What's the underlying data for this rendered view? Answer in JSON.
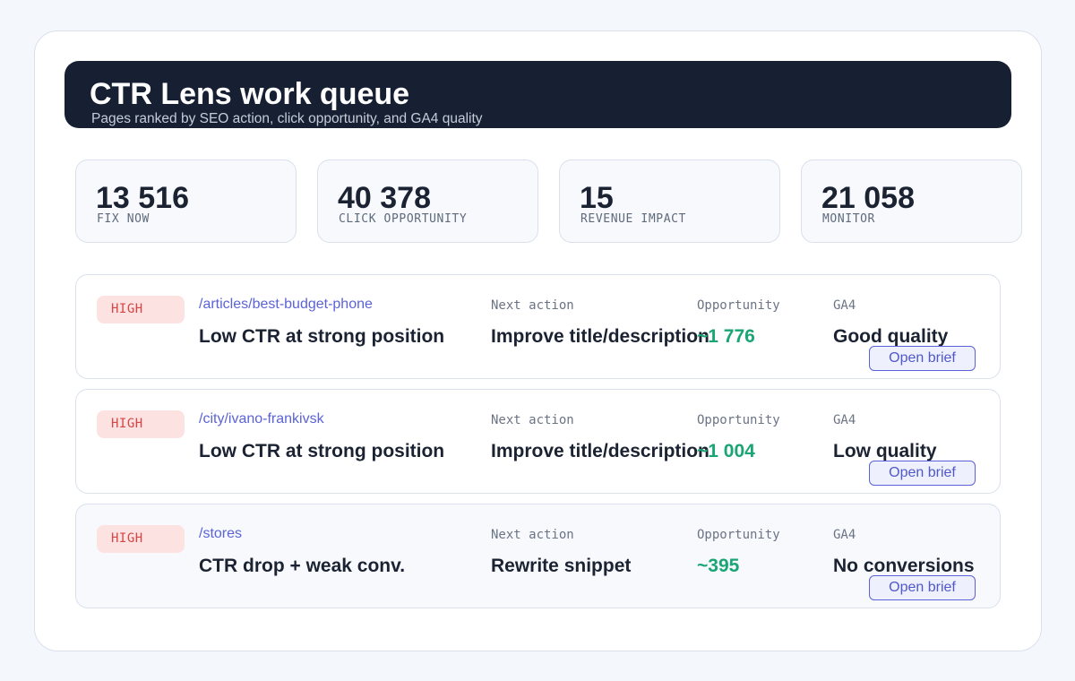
{
  "header": {
    "title": "CTR Lens work queue",
    "subtitle": "Pages ranked by SEO action, click opportunity, and GA4 quality"
  },
  "stats": [
    {
      "value": "13 516",
      "label": "FIX NOW"
    },
    {
      "value": "40 378",
      "label": "CLICK OPPORTUNITY"
    },
    {
      "value": "15",
      "label": "REVENUE IMPACT"
    },
    {
      "value": "21 058",
      "label": "MONITOR"
    }
  ],
  "columns": {
    "next_action": "Next action",
    "opportunity": "Opportunity",
    "ga4": "GA4"
  },
  "rows": [
    {
      "priority": "HIGH",
      "path": "/articles/best-budget-phone",
      "issue": "Low CTR at strong position",
      "next_action": "Improve title/description",
      "opportunity": "~1 776",
      "ga4": "Good quality",
      "button": "Open brief"
    },
    {
      "priority": "HIGH",
      "path": "/city/ivano-frankivsk",
      "issue": "Low CTR at strong position",
      "next_action": "Improve title/description",
      "opportunity": "~1 004",
      "ga4": "Low quality",
      "button": "Open brief"
    },
    {
      "priority": "HIGH",
      "path": "/stores",
      "issue": "CTR drop + weak conv.",
      "next_action": "Rewrite snippet",
      "opportunity": "~395",
      "ga4": "No conversions",
      "button": "Open brief"
    }
  ],
  "colors": {
    "hero_bg": "#172033",
    "accent": "#5b63d6",
    "opportunity": "#1aa574",
    "priority_high": "#d64545",
    "priority_high_bg": "#fde2e2"
  }
}
